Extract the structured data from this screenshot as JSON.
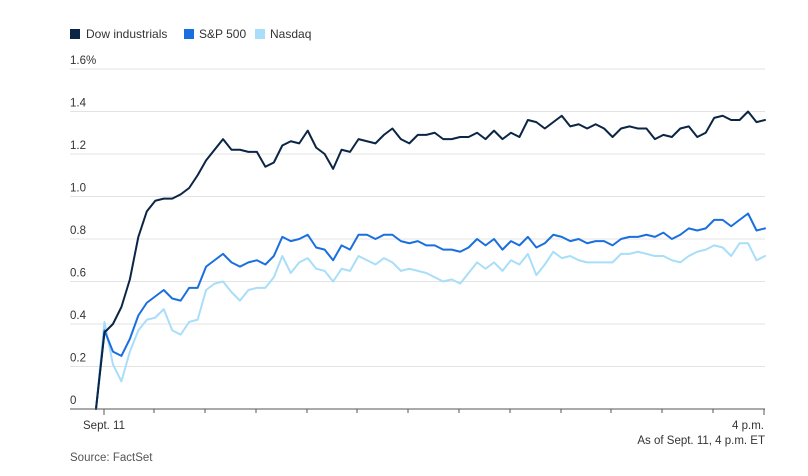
{
  "chart_data": {
    "type": "line",
    "legend_position": "top-left",
    "grid": true,
    "y_tick_labels": [
      "0",
      "0.2",
      "0.4",
      "0.6",
      "0.8",
      "1.0",
      "1.2",
      "1.4",
      "1.6%"
    ],
    "y_ticks": [
      0,
      0.2,
      0.4,
      0.6,
      0.8,
      1.0,
      1.2,
      1.4,
      1.6
    ],
    "ylim": [
      0,
      1.6
    ],
    "x_start_label": "Sept. 11",
    "x_end_label": "4 p.m.",
    "note": "As of Sept. 11, 4 p.m. ET",
    "source": "Source: FactSet",
    "colors": {
      "dow": "#0b2545",
      "sp500": "#1a6fdf",
      "nasdaq": "#a9def9",
      "grid": "#e3e3e3",
      "axis": "#555555"
    },
    "series": [
      {
        "name": "Dow industrials",
        "color": "#0b2545",
        "values": [
          0.0,
          0.36,
          0.4,
          0.48,
          0.61,
          0.81,
          0.93,
          0.98,
          0.99,
          0.99,
          1.01,
          1.04,
          1.1,
          1.17,
          1.22,
          1.27,
          1.22,
          1.22,
          1.21,
          1.21,
          1.14,
          1.16,
          1.24,
          1.26,
          1.25,
          1.31,
          1.23,
          1.2,
          1.13,
          1.22,
          1.21,
          1.27,
          1.26,
          1.25,
          1.29,
          1.32,
          1.27,
          1.25,
          1.29,
          1.29,
          1.3,
          1.27,
          1.27,
          1.28,
          1.28,
          1.3,
          1.27,
          1.31,
          1.27,
          1.3,
          1.28,
          1.36,
          1.35,
          1.32,
          1.35,
          1.38,
          1.33,
          1.34,
          1.32,
          1.34,
          1.32,
          1.28,
          1.32,
          1.33,
          1.32,
          1.32,
          1.27,
          1.29,
          1.28,
          1.32,
          1.33,
          1.28,
          1.3,
          1.37,
          1.38,
          1.36,
          1.36,
          1.4,
          1.35,
          1.36
        ]
      },
      {
        "name": "S&P 500",
        "color": "#1a6fdf",
        "values": [
          0.0,
          0.37,
          0.27,
          0.25,
          0.33,
          0.44,
          0.5,
          0.53,
          0.56,
          0.52,
          0.51,
          0.57,
          0.57,
          0.67,
          0.7,
          0.73,
          0.69,
          0.67,
          0.69,
          0.7,
          0.68,
          0.72,
          0.81,
          0.79,
          0.8,
          0.82,
          0.76,
          0.75,
          0.7,
          0.77,
          0.75,
          0.82,
          0.82,
          0.8,
          0.82,
          0.82,
          0.79,
          0.78,
          0.79,
          0.77,
          0.77,
          0.75,
          0.75,
          0.74,
          0.76,
          0.8,
          0.77,
          0.8,
          0.75,
          0.79,
          0.77,
          0.81,
          0.76,
          0.78,
          0.82,
          0.81,
          0.79,
          0.8,
          0.78,
          0.79,
          0.79,
          0.77,
          0.8,
          0.81,
          0.81,
          0.82,
          0.81,
          0.83,
          0.8,
          0.82,
          0.85,
          0.84,
          0.85,
          0.89,
          0.89,
          0.86,
          0.89,
          0.92,
          0.84,
          0.85
        ]
      },
      {
        "name": "Nasdaq",
        "color": "#a9def9",
        "values": [
          0.0,
          0.41,
          0.21,
          0.13,
          0.27,
          0.37,
          0.42,
          0.43,
          0.47,
          0.37,
          0.35,
          0.41,
          0.42,
          0.56,
          0.59,
          0.6,
          0.55,
          0.51,
          0.56,
          0.57,
          0.57,
          0.62,
          0.72,
          0.64,
          0.69,
          0.71,
          0.66,
          0.65,
          0.6,
          0.66,
          0.65,
          0.72,
          0.7,
          0.68,
          0.71,
          0.69,
          0.65,
          0.66,
          0.65,
          0.64,
          0.62,
          0.6,
          0.61,
          0.59,
          0.64,
          0.69,
          0.66,
          0.69,
          0.65,
          0.7,
          0.68,
          0.73,
          0.63,
          0.68,
          0.74,
          0.71,
          0.72,
          0.7,
          0.69,
          0.69,
          0.69,
          0.69,
          0.73,
          0.73,
          0.74,
          0.73,
          0.72,
          0.72,
          0.7,
          0.69,
          0.72,
          0.74,
          0.75,
          0.77,
          0.76,
          0.72,
          0.78,
          0.78,
          0.7,
          0.72
        ]
      }
    ]
  }
}
